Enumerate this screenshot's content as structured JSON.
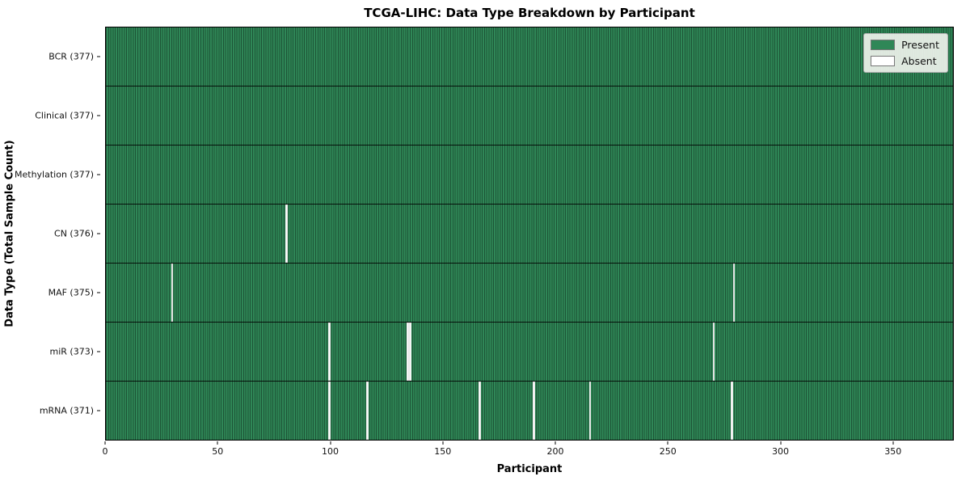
{
  "title": "TCGA-LIHC: Data Type Breakdown by Participant",
  "xlabel": "Participant",
  "ylabel": "Data Type (Total Sample Count)",
  "colors": {
    "present": "#2f8757",
    "absent": "#ffffff",
    "cell_edge": "rgba(0,0,0,0.38)",
    "row_separator": "rgba(0,0,0,0.85)",
    "axes_border": "#000000",
    "legend_bg": "rgba(239,242,236,0.92)"
  },
  "chart_data": {
    "type": "heatmap",
    "title": "TCGA-LIHC: Data Type Breakdown by Participant",
    "xlabel": "Participant",
    "ylabel": "Data Type (Total Sample Count)",
    "x_axis": {
      "range": [
        0,
        377
      ],
      "ticks": [
        0,
        50,
        100,
        150,
        200,
        250,
        300,
        350
      ]
    },
    "total_participants": 377,
    "grid": false,
    "legend_position": "upper right",
    "rows": [
      {
        "label": "BCR (377)",
        "data_type": "BCR",
        "present_count": 377,
        "absent_participants": []
      },
      {
        "label": "Clinical (377)",
        "data_type": "Clinical",
        "present_count": 377,
        "absent_participants": []
      },
      {
        "label": "Methylation (377)",
        "data_type": "Methylation",
        "present_count": 377,
        "absent_participants": []
      },
      {
        "label": "CN (376)",
        "data_type": "CN",
        "present_count": 376,
        "absent_participants": [
          80
        ]
      },
      {
        "label": "MAF (375)",
        "data_type": "MAF",
        "present_count": 375,
        "absent_participants": [
          29,
          279
        ]
      },
      {
        "label": "miR (373)",
        "data_type": "miR",
        "present_count": 373,
        "absent_participants": [
          99,
          134,
          135,
          270
        ]
      },
      {
        "label": "mRNA (371)",
        "data_type": "mRNA",
        "present_count": 371,
        "absent_participants": [
          99,
          116,
          166,
          190,
          215,
          278
        ]
      }
    ],
    "legend": [
      {
        "label": "Present",
        "color": "#2f8757"
      },
      {
        "label": "Absent",
        "color": "#ffffff"
      }
    ]
  }
}
